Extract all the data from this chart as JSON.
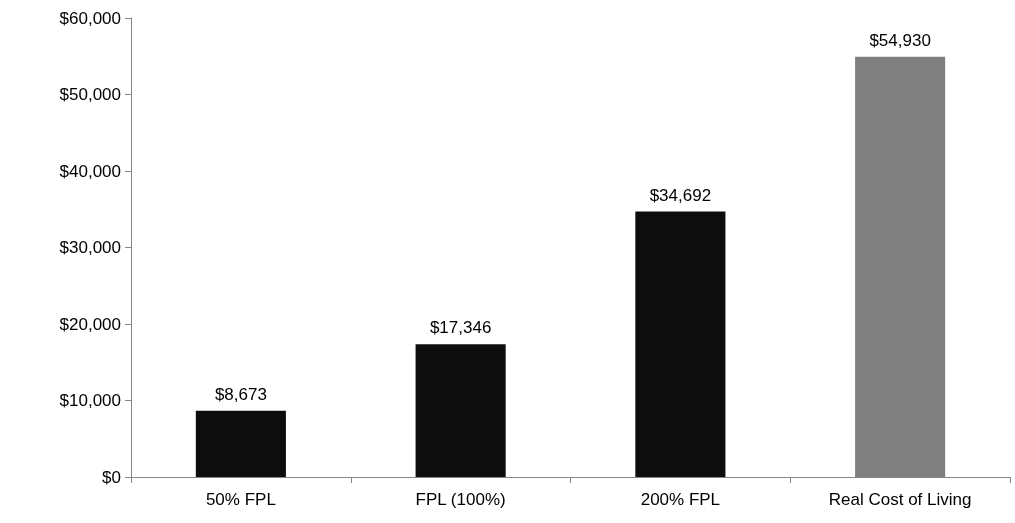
{
  "chart_data": {
    "type": "bar",
    "categories": [
      "50% FPL",
      "FPL (100%)",
      "200% FPL",
      "Real Cost of Living"
    ],
    "values": [
      8673,
      17346,
      34692,
      54930
    ],
    "colors": [
      "#0d0d0d",
      "#0d0d0d",
      "#0d0d0d",
      "#808080"
    ],
    "value_labels": [
      "$8,673",
      "$17,346",
      "$34,692",
      "$54,930"
    ],
    "ylim": [
      0,
      60000
    ],
    "yticks": [
      {
        "value": 0,
        "label": "$0"
      },
      {
        "value": 10000,
        "label": "$10,000"
      },
      {
        "value": 20000,
        "label": "$20,000"
      },
      {
        "value": 30000,
        "label": "$30,000"
      },
      {
        "value": 40000,
        "label": "$40,000"
      },
      {
        "value": 50000,
        "label": "$50,000"
      },
      {
        "value": 60000,
        "label": "$60,000"
      }
    ]
  }
}
